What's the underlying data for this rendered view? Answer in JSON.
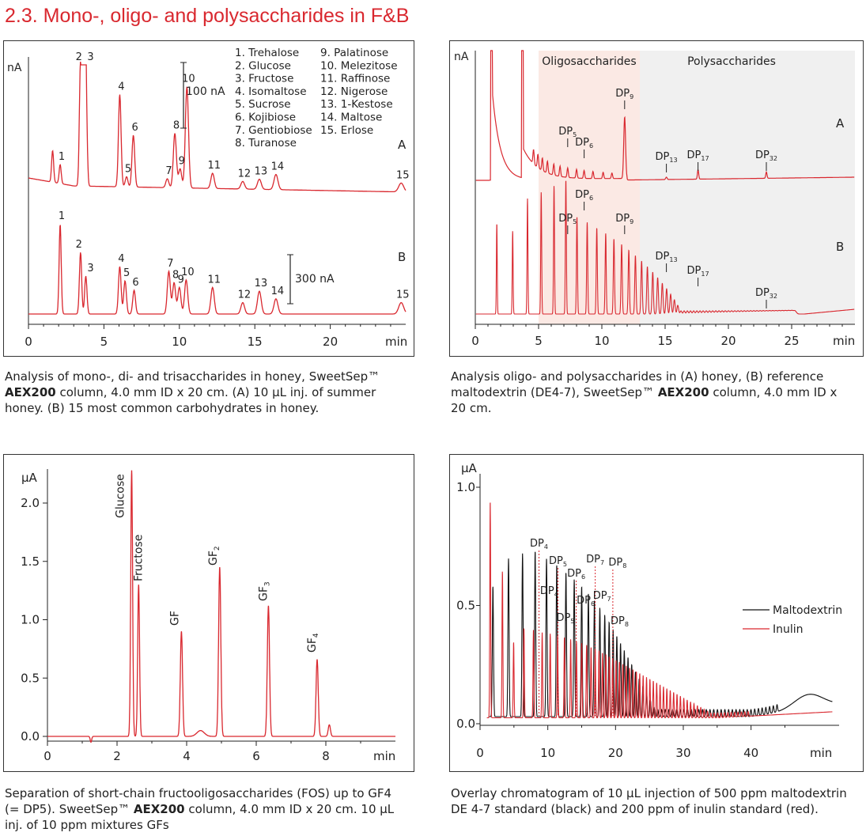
{
  "section_title": "2.3. Mono-, oligo- and polysaccharides in F&B",
  "captions": {
    "c1": {
      "pre": "Analysis of mono-, di- and trisaccharides in honey, SweetSep™ ",
      "bold": "AEX200",
      "post": " column, 4.0 mm ID x 20 cm. (A) 10 µL inj. of summer honey. (B) 15 most common carbohydrates in honey."
    },
    "c2": {
      "pre": "Analysis oligo- and polysaccharides in (A) honey, (B) reference maltodextrin (DE4-7), SweetSep™ ",
      "bold": "AEX200",
      "post": " column, 4.0 mm ID x 20 cm."
    },
    "c3": {
      "pre": "Separation of short-chain fructooligosaccharides (FOS) up to GF4 (= DP5). SweetSep™ ",
      "bold": "AEX200",
      "post": " column, 4.0 mm ID x 20 cm. 10 µL inj. of 10 ppm mixtures GFs"
    },
    "c4": {
      "pre": "Overlay chromatogram of 10 µL injection of 500 ppm maltodextrin DE 4-7 standard (black) and 200 ppm of inulin standard (red).",
      "bold": "",
      "post": ""
    }
  },
  "chart_data": [
    {
      "id": "chart1",
      "type": "line",
      "ylabel": "nA",
      "xlabel": "min",
      "xlim": [
        0,
        25
      ],
      "xticks": [
        0,
        5,
        10,
        15,
        20
      ],
      "legend": [
        "1. Trehalose",
        "2. Glucose",
        "3. Fructose",
        "4. Isomaltose",
        "5. Sucrose",
        "6. Kojibiose",
        "7. Gentiobiose",
        "8. Turanose",
        "9. Palatinose",
        "10. Melezitose",
        "11. Raffinose",
        "12. Nigerose",
        "13. 1-Kestose",
        "14. Maltose",
        "15. Erlose"
      ],
      "scalebars": [
        {
          "label": "100 nA",
          "trace": "A"
        },
        {
          "label": "300 nA",
          "trace": "B"
        }
      ],
      "color": "#d9282f",
      "series": [
        {
          "name": "A",
          "peaks": [
            {
              "x": 1.6,
              "h": 0.25,
              "label": ""
            },
            {
              "x": 2.1,
              "h": 0.15,
              "label": "1"
            },
            {
              "x": 3.45,
              "h": 1.0,
              "label": "2"
            },
            {
              "x": 3.8,
              "h": 0.9,
              "label": "3"
            },
            {
              "x": 6.05,
              "h": 0.73,
              "label": "4"
            },
            {
              "x": 6.5,
              "h": 0.08,
              "label": "5"
            },
            {
              "x": 6.95,
              "h": 0.41,
              "label": "6"
            },
            {
              "x": 9.2,
              "h": 0.07,
              "label": "7"
            },
            {
              "x": 9.7,
              "h": 0.43,
              "label": "8"
            },
            {
              "x": 10.05,
              "h": 0.15,
              "label": "9"
            },
            {
              "x": 10.5,
              "h": 0.8,
              "label": "10"
            },
            {
              "x": 12.2,
              "h": 0.12,
              "label": "11"
            },
            {
              "x": 14.2,
              "h": 0.06,
              "label": "12"
            },
            {
              "x": 15.3,
              "h": 0.08,
              "label": "13"
            },
            {
              "x": 16.4,
              "h": 0.12,
              "label": "14"
            },
            {
              "x": 24.7,
              "h": 0.07,
              "label": "15"
            }
          ]
        },
        {
          "name": "B",
          "peaks": [
            {
              "x": 2.1,
              "h": 0.95,
              "label": "1"
            },
            {
              "x": 3.45,
              "h": 0.65,
              "label": "2"
            },
            {
              "x": 3.8,
              "h": 0.4,
              "label": "3"
            },
            {
              "x": 6.05,
              "h": 0.5,
              "label": "4"
            },
            {
              "x": 6.4,
              "h": 0.35,
              "label": "5"
            },
            {
              "x": 7.0,
              "h": 0.25,
              "label": "6"
            },
            {
              "x": 9.3,
              "h": 0.45,
              "label": "7"
            },
            {
              "x": 9.65,
              "h": 0.33,
              "label": "8"
            },
            {
              "x": 10.0,
              "h": 0.28,
              "label": "9"
            },
            {
              "x": 10.45,
              "h": 0.36,
              "label": "10"
            },
            {
              "x": 12.2,
              "h": 0.28,
              "label": "11"
            },
            {
              "x": 14.2,
              "h": 0.12,
              "label": "12"
            },
            {
              "x": 15.3,
              "h": 0.24,
              "label": "13"
            },
            {
              "x": 16.4,
              "h": 0.16,
              "label": "14"
            },
            {
              "x": 24.7,
              "h": 0.12,
              "label": "15"
            }
          ]
        }
      ]
    },
    {
      "id": "chart2",
      "type": "line",
      "ylabel": "nA",
      "xlabel": "min",
      "xlim": [
        0,
        30
      ],
      "xticks": [
        0,
        5,
        10,
        15,
        20,
        25
      ],
      "regions": [
        {
          "label": "Oligosaccharides",
          "from": 5,
          "to": 13,
          "color": "#fbe9e4"
        },
        {
          "label": "Polysaccharides",
          "from": 13,
          "to": 30,
          "color": "#f0f0f0"
        }
      ],
      "color": "#d9282f",
      "series": [
        {
          "name": "A",
          "labels": [
            {
              "dp": "5",
              "x": 7.3
            },
            {
              "dp": "6",
              "x": 8.6
            },
            {
              "dp": "9",
              "x": 11.8
            },
            {
              "dp": "13",
              "x": 15.1
            },
            {
              "dp": "17",
              "x": 17.6
            },
            {
              "dp": "32",
              "x": 23.0
            }
          ]
        },
        {
          "name": "B",
          "labels": [
            {
              "dp": "5",
              "x": 7.3
            },
            {
              "dp": "6",
              "x": 8.6
            },
            {
              "dp": "9",
              "x": 11.8
            },
            {
              "dp": "13",
              "x": 15.1
            },
            {
              "dp": "17",
              "x": 17.6
            },
            {
              "dp": "32",
              "x": 23.0
            }
          ]
        }
      ]
    },
    {
      "id": "chart3",
      "type": "line",
      "ylabel": "µA",
      "xlabel": "min",
      "xlim": [
        0,
        10
      ],
      "ylim": [
        -0.05,
        2.3
      ],
      "xticks": [
        0,
        2,
        4,
        6,
        8
      ],
      "yticks": [
        0.0,
        0.5,
        1.0,
        1.5,
        2.0
      ],
      "ytick_labels": [
        "0.0",
        "0.5",
        "1.0",
        "1.5",
        "2.0"
      ],
      "color": "#d9282f",
      "peaks": [
        {
          "x": 2.42,
          "y": 2.28,
          "label": "Glucose",
          "sub": ""
        },
        {
          "x": 2.62,
          "y": 1.3,
          "label": "Fructose",
          "sub": ""
        },
        {
          "x": 3.85,
          "y": 0.9,
          "label": "GF",
          "sub": ""
        },
        {
          "x": 4.95,
          "y": 1.45,
          "label": "GF",
          "sub": "2"
        },
        {
          "x": 6.35,
          "y": 1.12,
          "label": "GF",
          "sub": "3"
        },
        {
          "x": 7.75,
          "y": 0.66,
          "label": "GF",
          "sub": "4"
        },
        {
          "x": 8.1,
          "y": 0.1,
          "label": "",
          "sub": ""
        }
      ]
    },
    {
      "id": "chart4",
      "type": "line",
      "ylabel": "µA",
      "xlabel": "min",
      "xlim": [
        0,
        53
      ],
      "ylim": [
        -0.05,
        1.05
      ],
      "xticks": [
        0,
        10,
        20,
        30,
        40
      ],
      "yticks": [
        0.0,
        0.5,
        1.0
      ],
      "ytick_labels": [
        "0.0",
        "0.5",
        "1.0"
      ],
      "series": [
        {
          "name": "Maltodextrin",
          "color": "#111111",
          "labels": [
            {
              "dp": "4",
              "x": 10.2
            },
            {
              "dp": "5",
              "x": 12.6
            },
            {
              "dp": "6",
              "x": 15.6
            },
            {
              "dp": "7",
              "x": 18.0
            },
            {
              "dp": "8",
              "x": 20.6
            }
          ]
        },
        {
          "name": "Inulin",
          "color": "#d9282f",
          "labels": [
            {
              "dp": "4",
              "x": 8.7
            },
            {
              "dp": "5",
              "x": 11.5
            },
            {
              "dp": "6",
              "x": 14.2
            },
            {
              "dp": "7",
              "x": 17.0
            },
            {
              "dp": "8",
              "x": 19.6
            }
          ]
        }
      ]
    }
  ]
}
